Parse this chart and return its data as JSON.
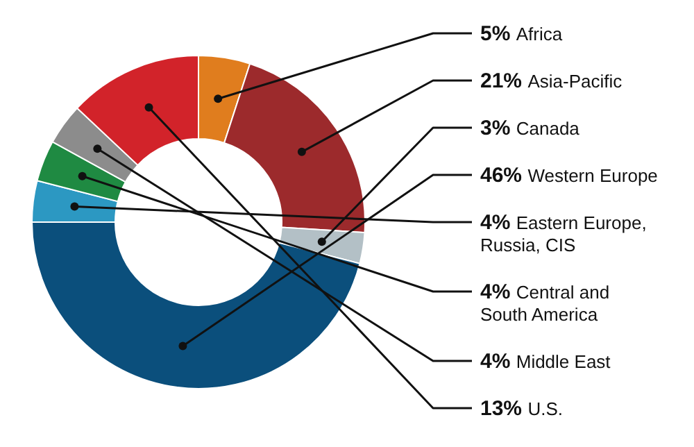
{
  "chart_data": {
    "type": "donut",
    "categories": [
      "Africa",
      "Asia-Pacific",
      "Canada",
      "Western Europe",
      "Eastern Europe, Russia, CIS",
      "Central and South America",
      "Middle East",
      "U.S."
    ],
    "values": [
      5,
      21,
      3,
      46,
      4,
      4,
      4,
      13
    ],
    "value_labels": [
      "5%",
      "21%",
      "3%",
      "46%",
      "4%",
      "4%",
      "4%",
      "13%"
    ],
    "colors": [
      "#e07d1e",
      "#9c2a2c",
      "#b3c0c6",
      "#0b4f7c",
      "#2c98c2",
      "#1f8a42",
      "#8c8c8c",
      "#d2232a"
    ]
  }
}
